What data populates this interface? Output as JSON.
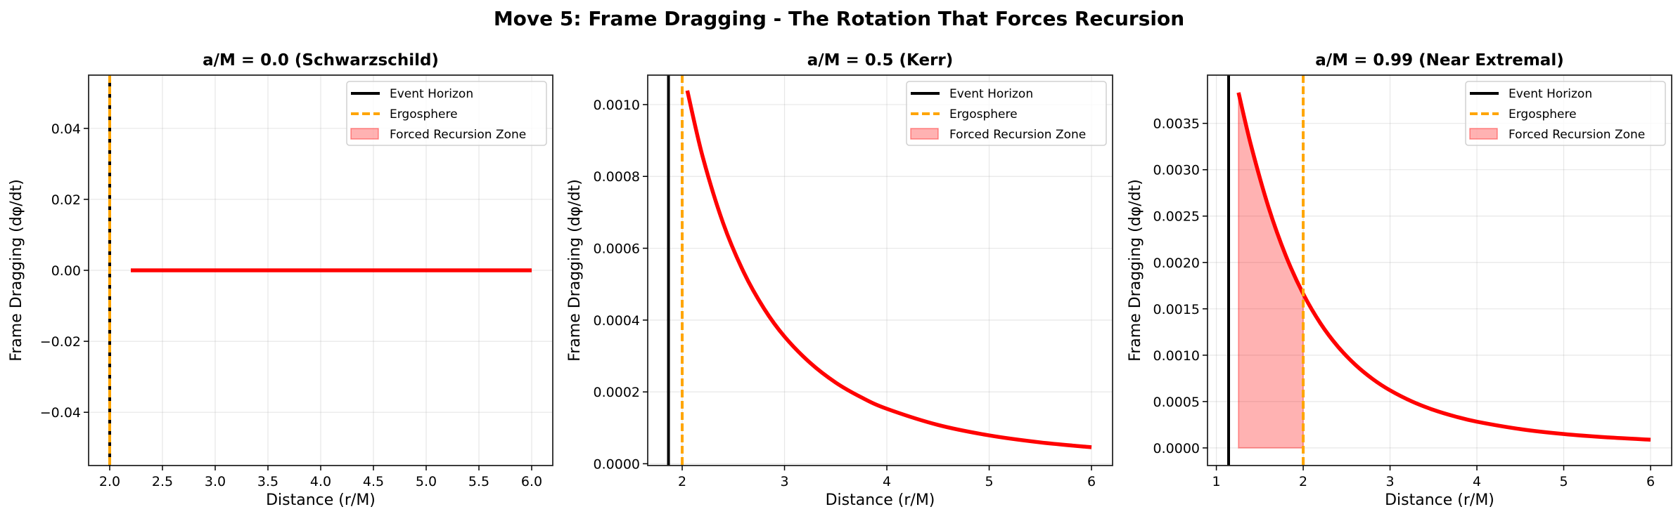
{
  "chart_data": {
    "type": "line",
    "title": "Move 5: Frame Dragging - The Rotation That Forces Recursion",
    "colors": {
      "curve": "#ff0000",
      "event_horizon": "#000000",
      "ergosphere": "#ffa500",
      "fill": "#ff0000",
      "grid": "#b0b0b0"
    },
    "panels": [
      {
        "title": "a/M = 0.0 (Schwarzschild)",
        "xlabel": "Distance (r/M)",
        "ylabel": "Frame Dragging (dφ/dt)",
        "xlim": [
          1.8,
          6.2
        ],
        "ylim": [
          -0.055,
          0.055
        ],
        "xticks": [
          2.0,
          2.5,
          3.0,
          3.5,
          4.0,
          4.5,
          5.0,
          5.5,
          6.0
        ],
        "xtick_labels": [
          "2.0",
          "2.5",
          "3.0",
          "3.5",
          "4.0",
          "4.5",
          "5.0",
          "5.5",
          "6.0"
        ],
        "yticks": [
          -0.04,
          -0.02,
          0.0,
          0.02,
          0.04
        ],
        "ytick_labels": [
          "−0.04",
          "−0.02",
          "0.00",
          "0.02",
          "0.04"
        ],
        "grid": true,
        "legend": "top-right",
        "legend_entries": [
          "Event Horizon",
          "Ergosphere",
          "Forced Recursion Zone"
        ],
        "event_horizon": 2.0,
        "ergosphere": 2.0,
        "fill_range": null,
        "series": {
          "x": [
            2.2,
            6.0
          ],
          "y": [
            0.0,
            0.0
          ]
        }
      },
      {
        "title": "a/M = 0.5 (Kerr)",
        "xlabel": "Distance (r/M)",
        "ylabel": "Frame Dragging (dφ/dt)",
        "xlim": [
          1.663,
          6.206
        ],
        "ylim": [
          -5e-06,
          0.001082
        ],
        "xticks": [
          2,
          3,
          4,
          5,
          6
        ],
        "xtick_labels": [
          "2",
          "3",
          "4",
          "5",
          "6"
        ],
        "yticks": [
          0.0,
          0.0002,
          0.0004,
          0.0006,
          0.0008,
          0.001
        ],
        "ytick_labels": [
          "0.0000",
          "0.0002",
          "0.0004",
          "0.0006",
          "0.0008",
          "0.0010"
        ],
        "grid": true,
        "legend": "top-right",
        "legend_entries": [
          "Event Horizon",
          "Ergosphere",
          "Forced Recursion Zone"
        ],
        "event_horizon": 1.866,
        "ergosphere": 2.0,
        "fill_range": null,
        "series": {
          "x": [
            2.05,
            2.2,
            2.4,
            2.6,
            2.8,
            3.0,
            3.25,
            3.5,
            3.75,
            4.0,
            4.5,
            5.0,
            5.5,
            6.0
          ],
          "y": [
            0.001039,
            0.000855,
            0.00067,
            0.000534,
            0.000432,
            0.000354,
            0.000281,
            0.000226,
            0.000185,
            0.000153,
            0.000108,
            7.89e-05,
            5.94e-05,
            4.59e-05
          ]
        }
      },
      {
        "title": "a/M = 0.99 (Near Extremal)",
        "xlabel": "Distance (r/M)",
        "ylabel": "Frame Dragging (dφ/dt)",
        "xlim": [
          0.898,
          6.243
        ],
        "ylim": [
          -0.00019,
          0.00402
        ],
        "xticks": [
          1,
          2,
          3,
          4,
          5,
          6
        ],
        "xtick_labels": [
          "1",
          "2",
          "3",
          "4",
          "5",
          "6"
        ],
        "yticks": [
          0.0,
          0.0005,
          0.001,
          0.0015,
          0.002,
          0.0025,
          0.003,
          0.0035
        ],
        "ytick_labels": [
          "0.0000",
          "0.0005",
          "0.0010",
          "0.0015",
          "0.0020",
          "0.0025",
          "0.0030",
          "0.0035"
        ],
        "grid": true,
        "legend": "top-right",
        "legend_entries": [
          "Event Horizon",
          "Ergosphere",
          "Forced Recursion Zone"
        ],
        "event_horizon": 1.141,
        "ergosphere": 2.0,
        "fill_range": [
          1.255,
          2.0
        ],
        "series": {
          "x": [
            1.255,
            1.4,
            1.6,
            1.8,
            2.0,
            2.2,
            2.4,
            2.6,
            2.8,
            3.0,
            3.25,
            3.5,
            3.75,
            4.0,
            4.5,
            5.0,
            5.5,
            6.0
          ],
          "y": [
            0.003832,
            0.003259,
            0.002597,
            0.002072,
            0.001661,
            0.001341,
            0.001092,
            0.000897,
            0.000743,
            0.000621,
            0.000502,
            0.00041,
            0.000339,
            0.000283,
            0.000203,
            0.00015,
            0.000114,
            8.85e-05
          ]
        }
      }
    ]
  }
}
